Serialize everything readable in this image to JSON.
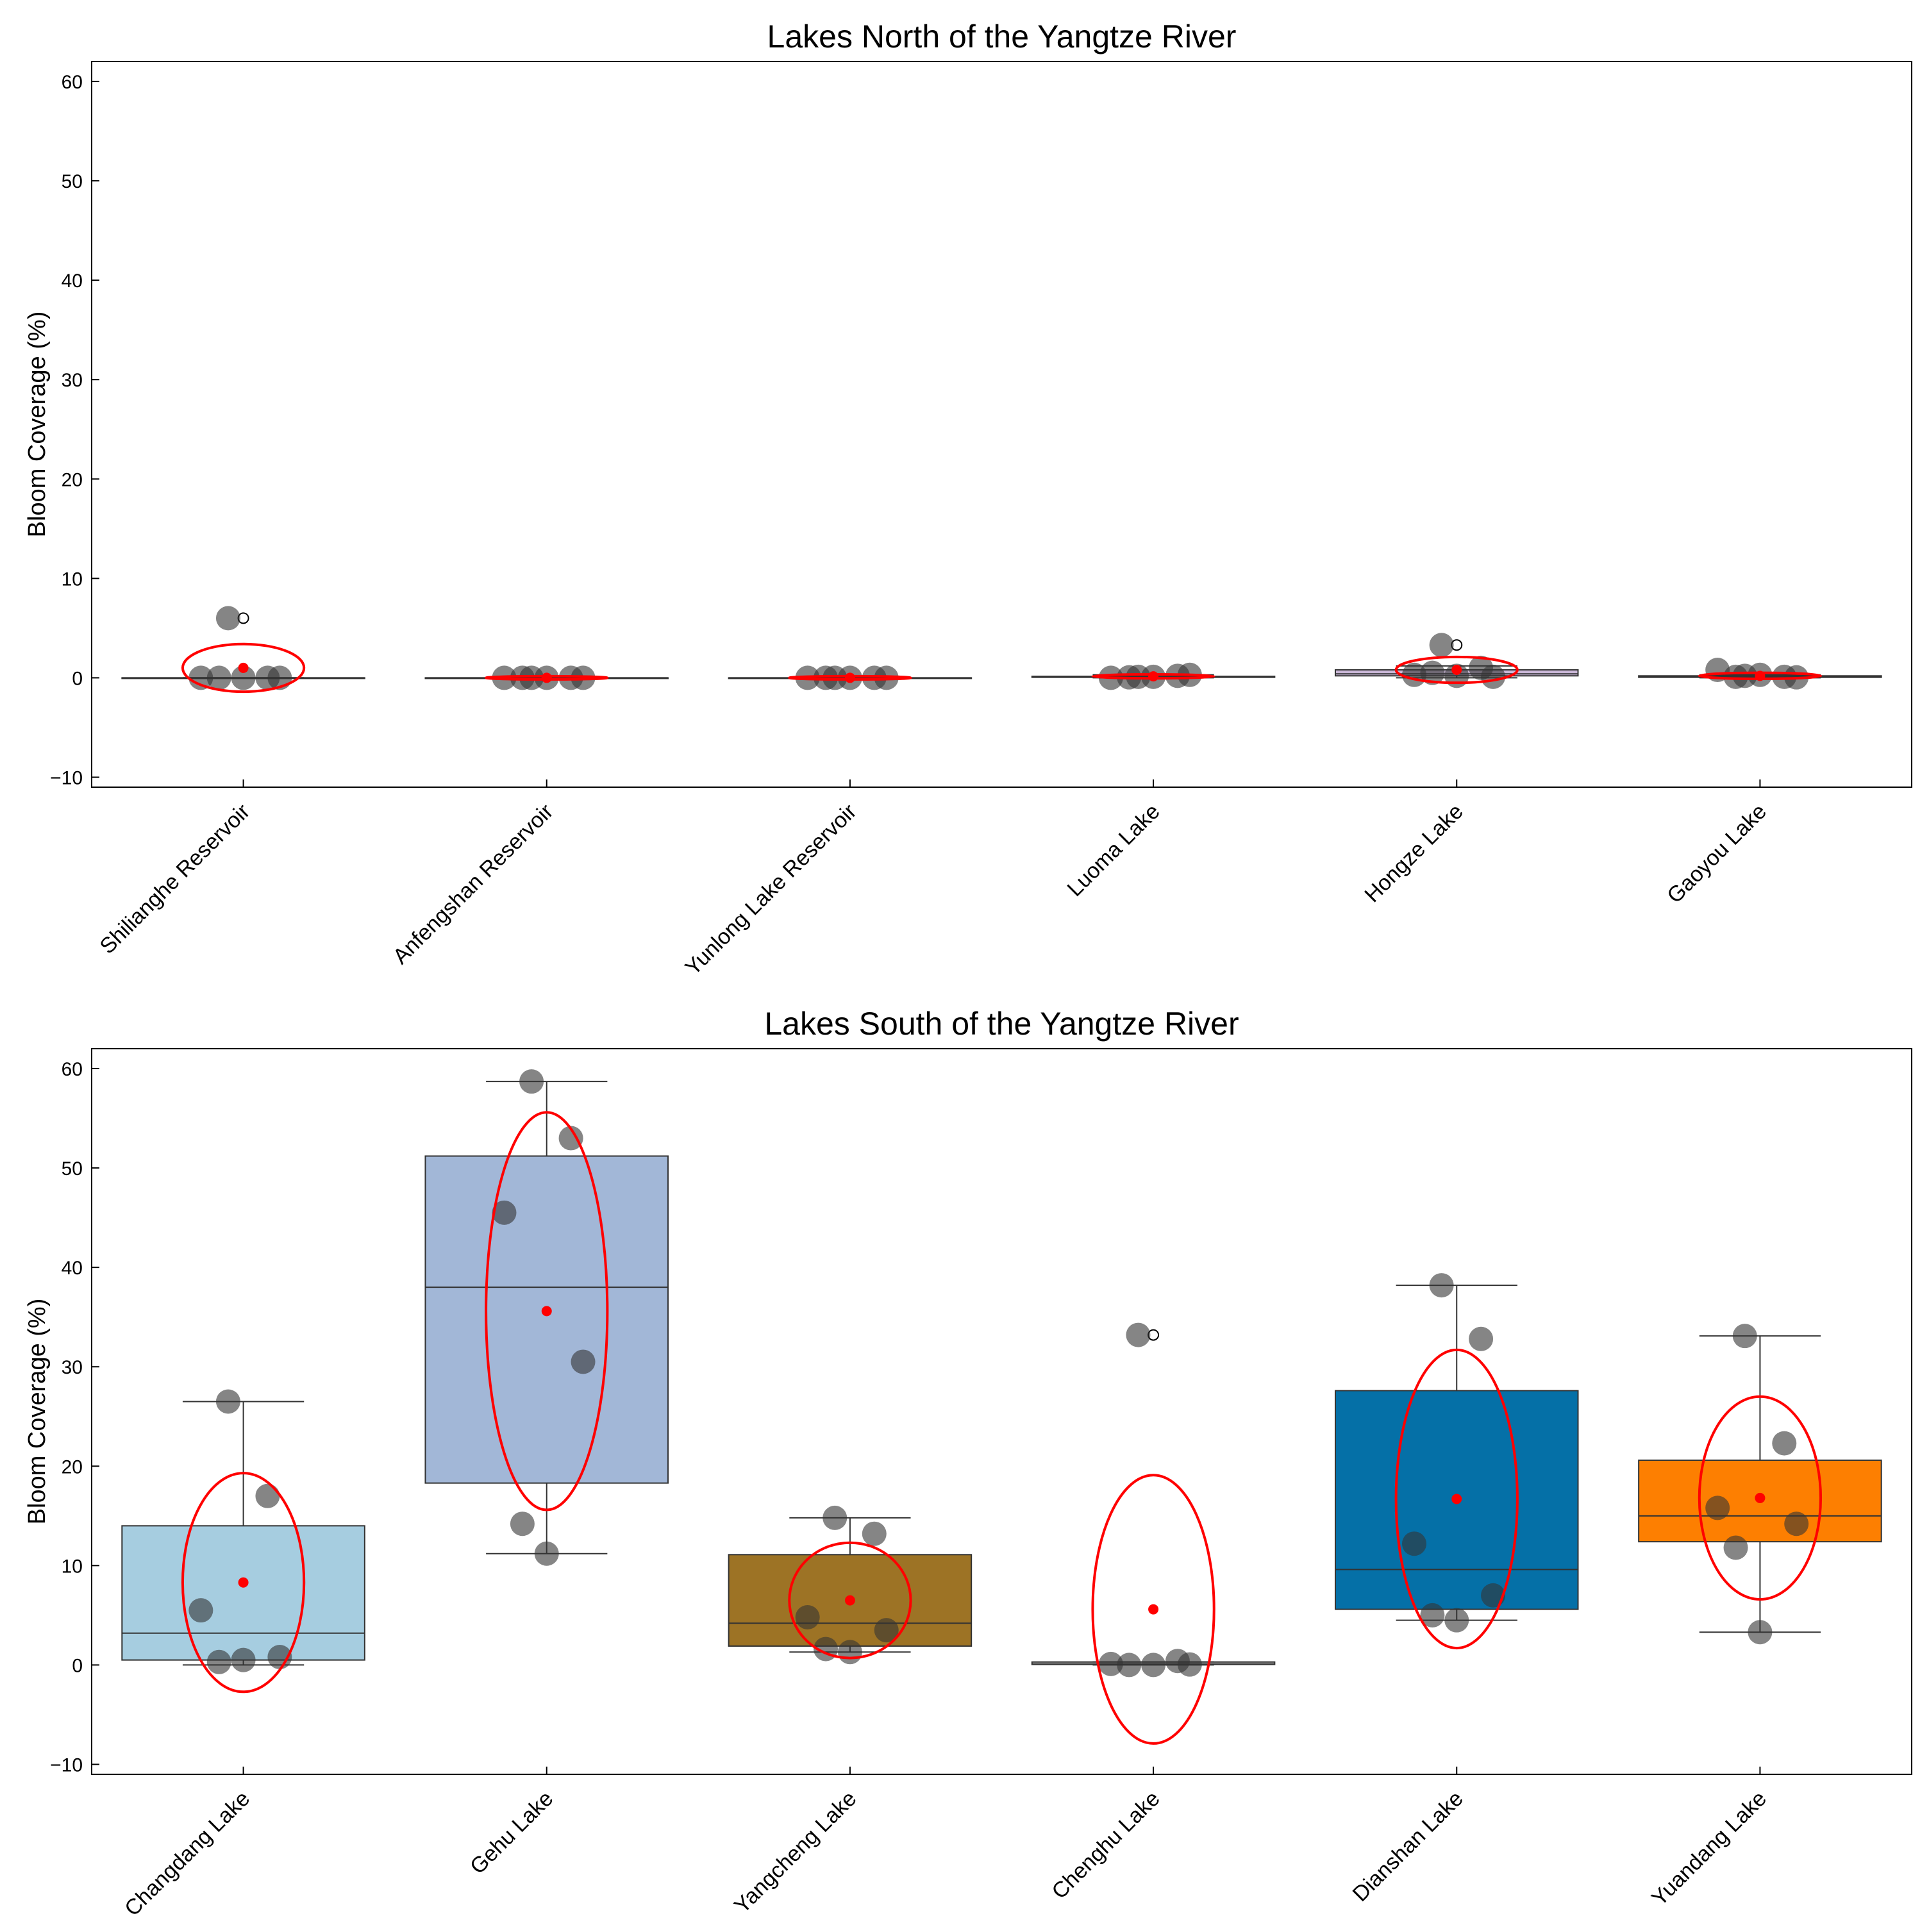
{
  "chart_data": [
    {
      "type": "box",
      "title": "Lakes North of the Yangtze River",
      "ylabel": "Bloom Coverage (%)",
      "ylim": [
        -11,
        62
      ],
      "yticks": [
        -10,
        0,
        10,
        20,
        30,
        40,
        50,
        60
      ],
      "categories": [
        "Shilianghe Reservoir",
        "Anfengshan Reservoir",
        "Yunlong Lake Reservoir",
        "Luoma Lake",
        "Hongze Lake",
        "Gaoyou Lake"
      ],
      "boxes": [
        {
          "q1": 0,
          "median": 0,
          "q3": 0,
          "whisker_low": 0,
          "whisker_high": 0,
          "mean": 1.0,
          "fill": "#ffffff",
          "outliers": [
            6.0
          ],
          "points": [
            6.0,
            0,
            0,
            0,
            0,
            0
          ],
          "ellipse": {
            "center": 1.0,
            "half_height": 2.4,
            "half_width_frac": 0.4
          }
        },
        {
          "q1": 0,
          "median": 0,
          "q3": 0,
          "whisker_low": 0,
          "whisker_high": 0,
          "mean": 0,
          "fill": "#ffffff",
          "outliers": [],
          "points": [
            0,
            0,
            0,
            0,
            0,
            0
          ],
          "ellipse": {
            "center": 0,
            "half_height": 0.05,
            "half_width_frac": 0.4
          }
        },
        {
          "q1": 0,
          "median": 0,
          "q3": 0,
          "whisker_low": 0,
          "whisker_high": 0,
          "mean": 0,
          "fill": "#ffffff",
          "outliers": [],
          "points": [
            0,
            0,
            0,
            0,
            0,
            0
          ],
          "ellipse": {
            "center": 0,
            "half_height": 0.05,
            "half_width_frac": 0.4
          }
        },
        {
          "q1": 0.05,
          "median": 0.1,
          "q3": 0.15,
          "whisker_low": 0,
          "whisker_high": 0.3,
          "mean": 0.15,
          "fill": "#ffffff",
          "outliers": [],
          "points": [
            0.1,
            0.2,
            0,
            0.3,
            0.05,
            0.1
          ],
          "ellipse": {
            "center": 0.15,
            "half_height": 0.2,
            "half_width_frac": 0.4
          }
        },
        {
          "q1": 0.2,
          "median": 0.4,
          "q3": 0.8,
          "whisker_low": 0,
          "whisker_high": 1.2,
          "mean": 0.8,
          "fill": "#cbb8d8",
          "outliers": [
            3.3
          ],
          "points": [
            3.3,
            1.0,
            0.3,
            0.1,
            0.5,
            0.2
          ],
          "ellipse": {
            "center": 0.8,
            "half_height": 1.3,
            "half_width_frac": 0.4
          }
        },
        {
          "q1": 0.05,
          "median": 0.1,
          "q3": 0.2,
          "whisker_low": 0,
          "whisker_high": 0.3,
          "mean": 0.2,
          "fill": "#ffffff",
          "outliers": [],
          "points": [
            0.2,
            0.1,
            0.8,
            0.05,
            0.1,
            0.3
          ],
          "ellipse": {
            "center": 0.2,
            "half_height": 0.3,
            "half_width_frac": 0.4
          }
        }
      ]
    },
    {
      "type": "box",
      "title": "Lakes South of the Yangtze River",
      "ylabel": "Bloom Coverage (%)",
      "ylim": [
        -11,
        62
      ],
      "yticks": [
        -10,
        0,
        10,
        20,
        30,
        40,
        50,
        60
      ],
      "categories": [
        "Changdang Lake",
        "Gehu Lake",
        "Yangcheng Lake",
        "Chenghu Lake",
        "Dianshan Lake",
        "Yuandang Lake"
      ],
      "boxes": [
        {
          "q1": 0.5,
          "median": 3.2,
          "q3": 14.0,
          "whisker_low": 0,
          "whisker_high": 26.5,
          "mean": 8.3,
          "fill": "#a6cde0",
          "outliers": [],
          "points": [
            26.5,
            17.0,
            5.5,
            0.8,
            0.3,
            0.5
          ],
          "ellipse": {
            "center": 8.3,
            "half_height": 11.0,
            "half_width_frac": 0.4
          }
        },
        {
          "q1": 18.3,
          "median": 38.0,
          "q3": 51.2,
          "whisker_low": 11.2,
          "whisker_high": 58.7,
          "mean": 35.6,
          "fill": "#a2b7d7",
          "outliers": [],
          "points": [
            58.7,
            53.0,
            45.5,
            30.5,
            14.2,
            11.2
          ],
          "ellipse": {
            "center": 35.6,
            "half_height": 20.0,
            "half_width_frac": 0.4
          }
        },
        {
          "q1": 1.9,
          "median": 4.2,
          "q3": 11.1,
          "whisker_low": 1.3,
          "whisker_high": 14.8,
          "mean": 6.5,
          "fill": "#9d7325",
          "outliers": [],
          "points": [
            14.8,
            13.2,
            4.8,
            3.5,
            1.6,
            1.3
          ],
          "ellipse": {
            "center": 6.5,
            "half_height": 5.8,
            "half_width_frac": 0.4
          }
        },
        {
          "q1": 0.05,
          "median": 0.1,
          "q3": 0.3,
          "whisker_low": 0,
          "whisker_high": 0.3,
          "mean": 5.6,
          "fill": "#d4d4d4",
          "outliers": [
            33.2
          ],
          "points": [
            33.2,
            0.4,
            0.1,
            0.05,
            0.0,
            0.0
          ],
          "ellipse": {
            "center": 5.6,
            "half_height": 13.5,
            "half_width_frac": 0.4
          }
        },
        {
          "q1": 5.6,
          "median": 9.6,
          "q3": 27.6,
          "whisker_low": 4.5,
          "whisker_high": 38.2,
          "mean": 16.7,
          "fill": "#0570a7",
          "outliers": [],
          "points": [
            38.2,
            32.8,
            12.2,
            7.0,
            5.0,
            4.5
          ],
          "ellipse": {
            "center": 16.7,
            "half_height": 15.0,
            "half_width_frac": 0.4
          }
        },
        {
          "q1": 12.4,
          "median": 15.0,
          "q3": 20.6,
          "whisker_low": 3.3,
          "whisker_high": 33.1,
          "mean": 16.8,
          "fill": "#fd7f01",
          "outliers": [],
          "points": [
            33.1,
            22.3,
            15.8,
            14.2,
            11.8,
            3.3
          ],
          "ellipse": {
            "center": 16.8,
            "half_height": 10.2,
            "half_width_frac": 0.4
          }
        }
      ]
    }
  ],
  "colors": {
    "mean_dot": "#ff0000",
    "ellipse": "#ff0000",
    "point": "#333333",
    "axis": "#000000"
  }
}
